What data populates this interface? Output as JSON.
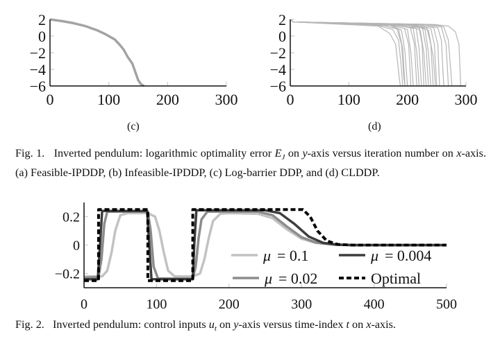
{
  "figure1": {
    "subfigures": [
      {
        "label": "(c)"
      },
      {
        "label": "(d)"
      }
    ],
    "caption": {
      "prefix": "Fig. 1.",
      "text1": "Inverted pendulum: logarithmic optimality error ",
      "symbol": "E",
      "symbol_sub": "J",
      "text2": " on ",
      "yvar": "y",
      "text3": "-axis versus iteration number on ",
      "xvar": "x",
      "text4": "-axis.(a) Feasible-IPDDP, (b) Infeasible-IPDDP, (c) Log-barrier DDP, and (d) CLDDP."
    }
  },
  "figure2": {
    "caption": {
      "prefix": "Fig. 2.",
      "text1": "Inverted pendulum: control inputs ",
      "symbol": "u",
      "symbol_sub": "t",
      "text2": " on ",
      "yvar": "y",
      "text3": "-axis versus time-index ",
      "tvar": "t",
      "text4": " on ",
      "xvar": "x",
      "text5": "-axis."
    }
  },
  "chart_data": [
    {
      "id": "fig1c",
      "type": "line",
      "xlim": [
        0,
        300
      ],
      "ylim": [
        -6,
        2
      ],
      "xticks": [
        0,
        100,
        200,
        300
      ],
      "xtick_labels": [
        "0",
        "100",
        "200",
        "300"
      ],
      "yticks": [
        2,
        0,
        -2,
        -4,
        -6
      ],
      "ytick_labels": [
        "2",
        "0",
        "−2",
        "−4",
        "−6"
      ],
      "color": "#a3a3a3",
      "series": [
        {
          "points": [
            [
              0,
              2
            ],
            [
              20,
              1.8
            ],
            [
              40,
              1.55
            ],
            [
              60,
              1.2
            ],
            [
              80,
              0.7
            ],
            [
              95,
              0.2
            ],
            [
              110,
              -0.4
            ],
            [
              118,
              -1
            ],
            [
              125,
              -1.6
            ],
            [
              132,
              -2.5
            ],
            [
              140,
              -3.3
            ],
            [
              146,
              -4.5
            ],
            [
              150,
              -5.3
            ],
            [
              155,
              -5.8
            ],
            [
              160,
              -6
            ]
          ]
        }
      ]
    },
    {
      "id": "fig1d",
      "type": "line",
      "xlim": [
        0,
        300
      ],
      "ylim": [
        -6,
        2
      ],
      "xticks": [
        0,
        100,
        200,
        300
      ],
      "xtick_labels": [
        "0",
        "100",
        "200",
        "300"
      ],
      "yticks": [
        2,
        0,
        -2,
        -4,
        -6
      ],
      "ytick_labels": [
        "2",
        "0",
        "−2",
        "−4",
        "−6"
      ],
      "color": "#b5b5b5",
      "series": [
        {
          "points": [
            [
              0,
              2
            ],
            [
              5,
              1.7
            ],
            [
              150,
              1.2
            ],
            [
              170,
              0.3
            ],
            [
              180,
              -1
            ],
            [
              186,
              -5
            ],
            [
              188,
              -6
            ]
          ]
        },
        {
          "points": [
            [
              0,
              2
            ],
            [
              5,
              1.7
            ],
            [
              150,
              1.25
            ],
            [
              175,
              0.8
            ],
            [
              185,
              -0.5
            ],
            [
              190,
              -4
            ],
            [
              192,
              -6
            ]
          ]
        },
        {
          "points": [
            [
              0,
              2
            ],
            [
              5,
              1.7
            ],
            [
              160,
              1.25
            ],
            [
              182,
              0.9
            ],
            [
              190,
              -1
            ],
            [
              194,
              -5
            ],
            [
              196,
              -6
            ]
          ]
        },
        {
          "points": [
            [
              0,
              2
            ],
            [
              5,
              1.7
            ],
            [
              160,
              1.3
            ],
            [
              185,
              0.8
            ],
            [
              192,
              -1.5
            ],
            [
              196,
              -6
            ]
          ]
        },
        {
          "points": [
            [
              0,
              2
            ],
            [
              5,
              1.7
            ],
            [
              170,
              1.3
            ],
            [
              190,
              0.7
            ],
            [
              196,
              -2
            ],
            [
              200,
              -6
            ]
          ]
        },
        {
          "points": [
            [
              0,
              2
            ],
            [
              5,
              1.7
            ],
            [
              170,
              1.3
            ],
            [
              195,
              0.9
            ],
            [
              202,
              -1
            ],
            [
              206,
              -6
            ]
          ]
        },
        {
          "points": [
            [
              0,
              2
            ],
            [
              5,
              1.7
            ],
            [
              175,
              1.3
            ],
            [
              200,
              0.8
            ],
            [
              206,
              -2
            ],
            [
              210,
              -6
            ]
          ]
        },
        {
          "points": [
            [
              0,
              2
            ],
            [
              5,
              1.7
            ],
            [
              180,
              1.3
            ],
            [
              205,
              1
            ],
            [
              212,
              -1
            ],
            [
              216,
              -6
            ]
          ]
        },
        {
          "points": [
            [
              0,
              2
            ],
            [
              5,
              1.7
            ],
            [
              185,
              1.3
            ],
            [
              210,
              0.9
            ],
            [
              216,
              -2
            ],
            [
              220,
              -6
            ]
          ]
        },
        {
          "points": [
            [
              0,
              2
            ],
            [
              5,
              1.7
            ],
            [
              190,
              1.3
            ],
            [
              215,
              0.9
            ],
            [
              220,
              -1.5
            ],
            [
              224,
              -6
            ]
          ]
        },
        {
          "points": [
            [
              0,
              2
            ],
            [
              5,
              1.7
            ],
            [
              195,
              1.35
            ],
            [
              220,
              1
            ],
            [
              225,
              -1
            ],
            [
              228,
              -6
            ]
          ]
        },
        {
          "points": [
            [
              0,
              2
            ],
            [
              5,
              1.7
            ],
            [
              200,
              1.35
            ],
            [
              222,
              0.7
            ],
            [
              228,
              -2
            ],
            [
              232,
              -6
            ]
          ]
        },
        {
          "points": [
            [
              0,
              2
            ],
            [
              5,
              1.7
            ],
            [
              205,
              1.35
            ],
            [
              226,
              0.9
            ],
            [
              232,
              -1.5
            ],
            [
              236,
              -6
            ]
          ]
        },
        {
          "points": [
            [
              0,
              2
            ],
            [
              5,
              1.7
            ],
            [
              210,
              1.35
            ],
            [
              230,
              0.8
            ],
            [
              236,
              -2
            ],
            [
              240,
              -6
            ]
          ]
        },
        {
          "points": [
            [
              0,
              2
            ],
            [
              5,
              1.7
            ],
            [
              210,
              1.35
            ],
            [
              233,
              1
            ],
            [
              240,
              -1
            ],
            [
              244,
              -6
            ]
          ]
        },
        {
          "points": [
            [
              0,
              2
            ],
            [
              5,
              1.7
            ],
            [
              215,
              1.35
            ],
            [
              236,
              0.7
            ],
            [
              244,
              -2.5
            ],
            [
              248,
              -6
            ]
          ]
        },
        {
          "points": [
            [
              0,
              2
            ],
            [
              5,
              1.7
            ],
            [
              220,
              1.35
            ],
            [
              240,
              0.9
            ],
            [
              246,
              -1
            ],
            [
              250,
              -6
            ]
          ]
        },
        {
          "points": [
            [
              0,
              2
            ],
            [
              5,
              1.7
            ],
            [
              225,
              1.35
            ],
            [
              245,
              1
            ],
            [
              252,
              -1
            ],
            [
              255,
              -6
            ]
          ]
        },
        {
          "points": [
            [
              0,
              2
            ],
            [
              5,
              1.7
            ],
            [
              230,
              1.4
            ],
            [
              252,
              1
            ],
            [
              258,
              -0.5
            ],
            [
              262,
              -6
            ]
          ]
        },
        {
          "points": [
            [
              0,
              2
            ],
            [
              5,
              1.7
            ],
            [
              235,
              1.4
            ],
            [
              258,
              1.1
            ],
            [
              266,
              -1
            ],
            [
              270,
              -6
            ]
          ]
        },
        {
          "points": [
            [
              0,
              2
            ],
            [
              5,
              1.7
            ],
            [
              240,
              1.4
            ],
            [
              262,
              1.1
            ],
            [
              270,
              -0.5
            ],
            [
              276,
              -6
            ]
          ]
        },
        {
          "points": [
            [
              0,
              2
            ],
            [
              5,
              1.7
            ],
            [
              245,
              1.4
            ],
            [
              270,
              1.2
            ],
            [
              282,
              0.5
            ],
            [
              288,
              -1
            ],
            [
              291,
              -6
            ]
          ]
        }
      ]
    },
    {
      "id": "fig2",
      "type": "line",
      "xlim": [
        0,
        500
      ],
      "ylim": [
        -0.3,
        0.3
      ],
      "xticks": [
        0,
        100,
        200,
        300,
        400,
        500
      ],
      "xtick_labels": [
        "0",
        "100",
        "200",
        "300",
        "400",
        "500"
      ],
      "yticks": [
        0.2,
        0,
        -0.2
      ],
      "ytick_labels": [
        "0.2",
        "0",
        "−0.2"
      ],
      "legend": {
        "placement": "bottom-right",
        "columns": 2
      },
      "series": [
        {
          "name": "μ = 0.1",
          "legend_math": "μ",
          "legend_value": "= 0.1",
          "color": "#c2c2c2",
          "dashed": false,
          "points": [
            [
              0,
              -0.22
            ],
            [
              25,
              -0.22
            ],
            [
              32,
              -0.18
            ],
            [
              38,
              -0.05
            ],
            [
              43,
              0.1
            ],
            [
              50,
              0.21
            ],
            [
              60,
              0.225
            ],
            [
              88,
              0.225
            ],
            [
              98,
              0.2
            ],
            [
              104,
              0.1
            ],
            [
              110,
              -0.05
            ],
            [
              116,
              -0.18
            ],
            [
              125,
              -0.22
            ],
            [
              150,
              -0.22
            ],
            [
              160,
              -0.2
            ],
            [
              166,
              -0.1
            ],
            [
              172,
              0.05
            ],
            [
              178,
              0.17
            ],
            [
              188,
              0.22
            ],
            [
              200,
              0.225
            ],
            [
              240,
              0.22
            ],
            [
              260,
              0.19
            ],
            [
              280,
              0.11
            ],
            [
              300,
              0.045
            ],
            [
              320,
              0.015
            ],
            [
              345,
              0.003
            ],
            [
              370,
              0
            ],
            [
              500,
              0
            ]
          ]
        },
        {
          "name": "μ = 0.02",
          "legend_math": "μ",
          "legend_value": "= 0.02",
          "color": "#8c8c8c",
          "dashed": false,
          "points": [
            [
              0,
              -0.23
            ],
            [
              20,
              -0.225
            ],
            [
              24,
              -0.1
            ],
            [
              28,
              0.15
            ],
            [
              32,
              0.235
            ],
            [
              88,
              0.235
            ],
            [
              92,
              0.1
            ],
            [
              96,
              -0.15
            ],
            [
              102,
              -0.235
            ],
            [
              150,
              -0.235
            ],
            [
              154,
              -0.15
            ],
            [
              158,
              0.05
            ],
            [
              162,
              0.18
            ],
            [
              170,
              0.235
            ],
            [
              240,
              0.235
            ],
            [
              260,
              0.21
            ],
            [
              280,
              0.13
            ],
            [
              300,
              0.055
            ],
            [
              320,
              0.018
            ],
            [
              345,
              0.003
            ],
            [
              370,
              0
            ],
            [
              500,
              0
            ]
          ]
        },
        {
          "name": "μ = 0.004",
          "legend_math": "μ",
          "legend_value": "= 0.004",
          "color": "#3d3d3d",
          "dashed": false,
          "points": [
            [
              0,
              -0.24
            ],
            [
              19,
              -0.24
            ],
            [
              22,
              0
            ],
            [
              25,
              0.24
            ],
            [
              87,
              0.24
            ],
            [
              90,
              0
            ],
            [
              93,
              -0.24
            ],
            [
              150,
              -0.24
            ],
            [
              152,
              0
            ],
            [
              155,
              0.245
            ],
            [
              250,
              0.245
            ],
            [
              270,
              0.225
            ],
            [
              290,
              0.15
            ],
            [
              310,
              0.06
            ],
            [
              330,
              0.015
            ],
            [
              350,
              0.003
            ],
            [
              370,
              0
            ],
            [
              500,
              0
            ]
          ]
        },
        {
          "name": "Optimal",
          "legend_math": "",
          "legend_value": "Optimal",
          "color": "#000000",
          "dashed": true,
          "points": [
            [
              0,
              -0.25
            ],
            [
              20,
              -0.25
            ],
            [
              20,
              0.25
            ],
            [
              88,
              0.25
            ],
            [
              88,
              -0.25
            ],
            [
              150,
              -0.25
            ],
            [
              150,
              0.25
            ],
            [
              302,
              0.25
            ],
            [
              312,
              0.2
            ],
            [
              322,
              0.1
            ],
            [
              335,
              0.03
            ],
            [
              350,
              0.005
            ],
            [
              370,
              0
            ],
            [
              500,
              0
            ]
          ]
        }
      ]
    }
  ]
}
